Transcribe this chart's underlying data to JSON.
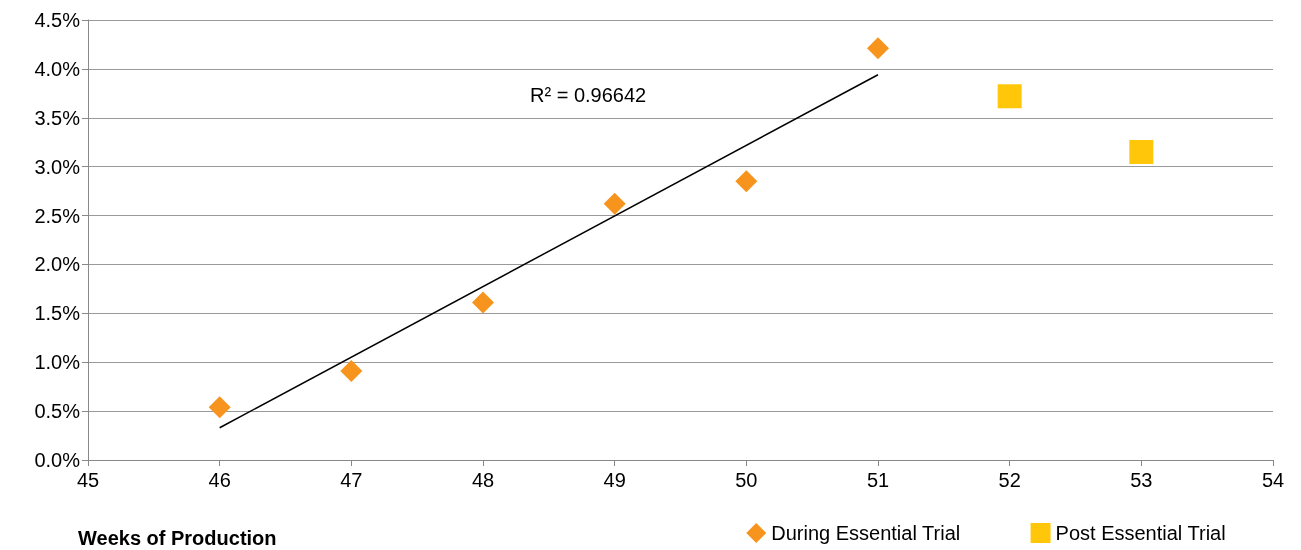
{
  "chart_data": {
    "type": "scatter",
    "xlabel": "Weeks of Production",
    "xlim": [
      45,
      54
    ],
    "xticks": [
      45,
      46,
      47,
      48,
      49,
      50,
      51,
      52,
      53,
      54
    ],
    "ylim": [
      0,
      4.5
    ],
    "yticks": [
      {
        "value": 0,
        "label": "0.0%"
      },
      {
        "value": 0.5,
        "label": "0.5%"
      },
      {
        "value": 1,
        "label": "1.0%"
      },
      {
        "value": 1.5,
        "label": "1.5%"
      },
      {
        "value": 2,
        "label": "2.0%"
      },
      {
        "value": 2.5,
        "label": "2.5%"
      },
      {
        "value": 3,
        "label": "3.0%"
      },
      {
        "value": 3.5,
        "label": "3.5%"
      },
      {
        "value": 4,
        "label": "4.0%"
      },
      {
        "value": 4.5,
        "label": "4.5%"
      }
    ],
    "grid": "y",
    "legend": "bottom",
    "series": [
      {
        "name": "During Essential Trial",
        "color": "#f7941d",
        "marker": "diamond",
        "x": [
          46,
          47,
          48,
          49,
          50,
          51
        ],
        "values": [
          0.54,
          0.91,
          1.61,
          2.62,
          2.85,
          4.21
        ]
      },
      {
        "name": "Post Essential Trial",
        "color": "#ffc60a",
        "marker": "square",
        "x": [
          52,
          53
        ],
        "values": [
          3.72,
          3.15
        ]
      },
      {
        "type": "line",
        "color": "#000000",
        "marker": "none",
        "x": [
          46,
          51
        ],
        "values": [
          0.33,
          3.94
        ]
      }
    ],
    "annotations": [
      "R² = 0.96642"
    ]
  }
}
